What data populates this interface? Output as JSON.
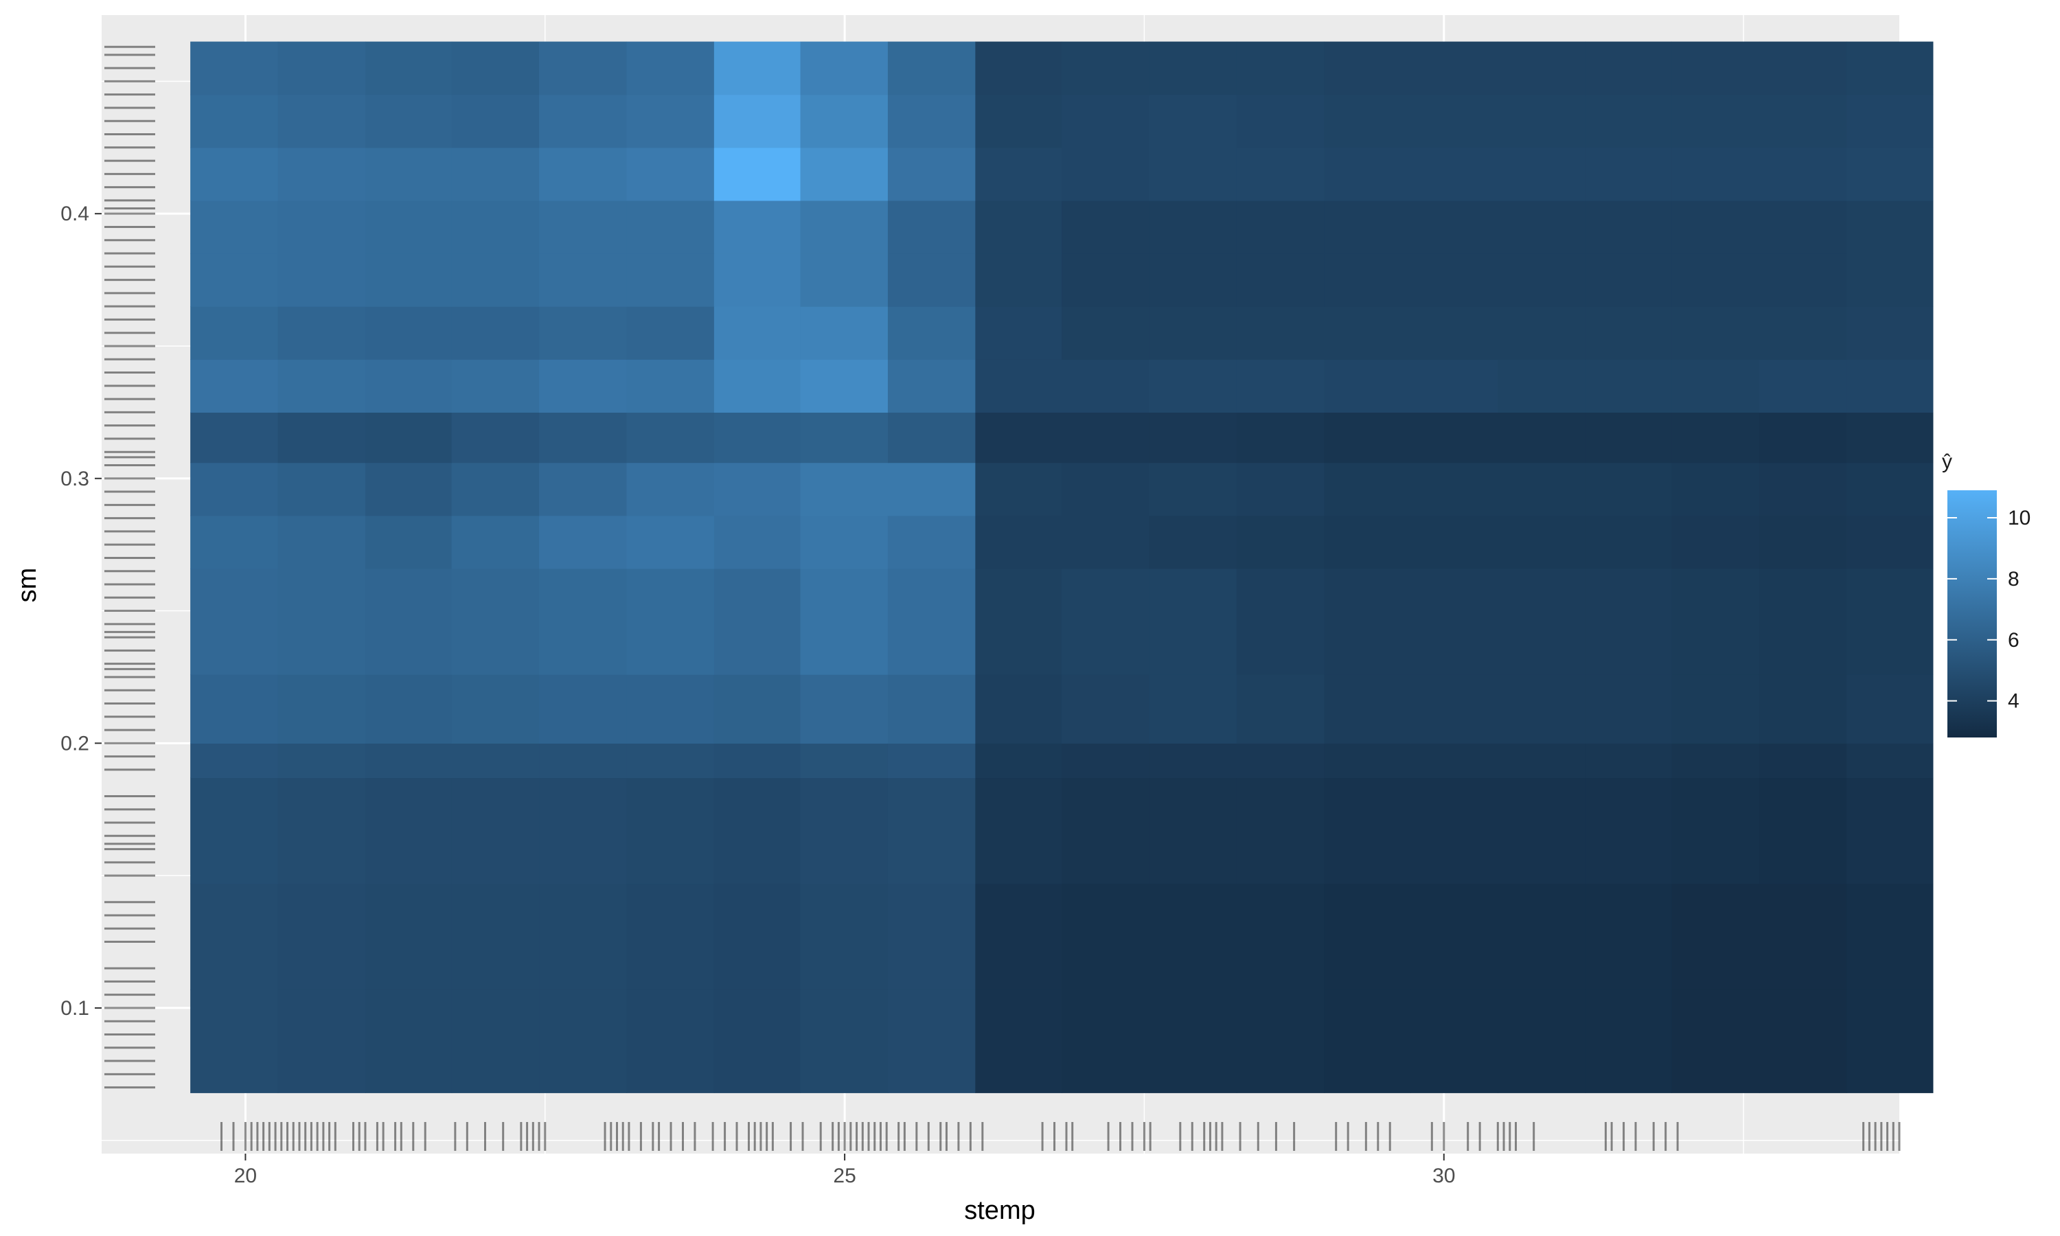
{
  "chart_data": {
    "type": "heatmap",
    "xlabel": "stemp",
    "ylabel": "sm",
    "xlim": [
      18.8,
      33.8
    ],
    "ylim": [
      0.045,
      0.475
    ],
    "x_ticks": [
      "20",
      "25",
      "30"
    ],
    "x_tick_values": [
      20,
      25,
      30
    ],
    "y_ticks": [
      "0.1",
      "0.2",
      "0.3",
      "0.4"
    ],
    "y_tick_values": [
      0.1,
      0.2,
      0.3,
      0.4
    ],
    "grid": true,
    "legend": {
      "title": "ŷ",
      "position": "right",
      "ticks": [
        "4",
        "6",
        "8",
        "10"
      ],
      "tick_values": [
        4,
        6,
        8,
        10
      ],
      "range": [
        2.8,
        10.9
      ],
      "low_color": "#132b43",
      "high_color": "#56b1f7"
    },
    "x_edges": [
      19.54,
      20.27,
      21.0,
      21.72,
      22.45,
      23.18,
      23.91,
      24.63,
      25.36,
      26.09,
      26.81,
      27.54,
      28.27,
      29.0,
      29.72,
      30.45,
      31.18,
      31.9,
      32.63,
      33.36,
      34.08
    ],
    "y_edges": [
      0.068,
      0.107,
      0.147,
      0.187,
      0.2,
      0.226,
      0.266,
      0.286,
      0.306,
      0.325,
      0.345,
      0.365,
      0.385,
      0.405,
      0.425,
      0.445,
      0.465
    ],
    "z": [
      [
        4.8,
        4.7,
        4.6,
        4.6,
        4.6,
        4.5,
        4.4,
        4.6,
        4.7,
        3.3,
        3.2,
        3.2,
        3.2,
        3.1,
        3.1,
        3.1,
        3.1,
        3.0,
        3.0,
        3.1
      ],
      [
        4.8,
        4.7,
        4.6,
        4.6,
        4.6,
        4.5,
        4.4,
        4.6,
        4.7,
        3.3,
        3.2,
        3.2,
        3.2,
        3.1,
        3.1,
        3.1,
        3.1,
        3.0,
        3.0,
        3.1
      ],
      [
        4.9,
        4.8,
        4.7,
        4.7,
        4.7,
        4.6,
        4.5,
        4.7,
        4.8,
        3.5,
        3.4,
        3.4,
        3.4,
        3.3,
        3.3,
        3.3,
        3.3,
        3.2,
        3.1,
        3.3
      ],
      [
        5.3,
        5.2,
        5.1,
        5.1,
        5.1,
        5.1,
        5.0,
        5.2,
        5.3,
        3.7,
        3.6,
        3.6,
        3.6,
        3.5,
        3.5,
        3.5,
        3.5,
        3.4,
        3.3,
        3.5
      ],
      [
        6.2,
        6.1,
        6.0,
        6.1,
        6.2,
        6.2,
        6.1,
        6.5,
        6.3,
        4.0,
        4.2,
        4.3,
        4.1,
        3.9,
        3.9,
        3.9,
        3.9,
        3.8,
        3.7,
        3.9
      ],
      [
        6.5,
        6.4,
        6.3,
        6.4,
        6.6,
        6.7,
        6.5,
        7.2,
        6.8,
        4.1,
        4.3,
        4.3,
        4.0,
        3.9,
        3.9,
        3.9,
        3.9,
        3.8,
        3.7,
        3.8
      ],
      [
        6.6,
        6.4,
        6.1,
        6.6,
        7.1,
        7.3,
        7.0,
        7.4,
        7.0,
        4.0,
        4.0,
        3.9,
        3.8,
        3.7,
        3.7,
        3.7,
        3.7,
        3.6,
        3.5,
        3.6
      ],
      [
        6.2,
        6.0,
        5.6,
        6.0,
        6.5,
        7.0,
        7.1,
        7.5,
        7.5,
        4.1,
        4.0,
        4.1,
        4.0,
        3.8,
        3.8,
        3.8,
        3.8,
        3.7,
        3.6,
        3.7
      ],
      [
        5.3,
        5.0,
        4.9,
        5.3,
        5.6,
        5.8,
        6.0,
        6.1,
        5.7,
        3.6,
        3.6,
        3.6,
        3.5,
        3.4,
        3.4,
        3.4,
        3.4,
        3.4,
        3.3,
        3.4
      ],
      [
        7.1,
        6.9,
        6.8,
        6.9,
        7.3,
        7.2,
        8.3,
        8.6,
        6.9,
        4.4,
        4.4,
        4.5,
        4.5,
        4.4,
        4.4,
        4.3,
        4.3,
        4.3,
        4.4,
        4.4
      ],
      [
        6.6,
        6.3,
        6.2,
        6.2,
        6.4,
        6.3,
        8.1,
        8.1,
        6.6,
        4.4,
        4.1,
        4.1,
        4.1,
        4.1,
        4.1,
        4.1,
        4.1,
        4.1,
        4.1,
        4.2
      ],
      [
        6.9,
        6.8,
        6.7,
        6.7,
        6.9,
        6.9,
        8.0,
        7.5,
        6.2,
        4.3,
        4.0,
        4.0,
        4.0,
        4.0,
        4.0,
        4.0,
        4.0,
        4.0,
        4.0,
        4.1
      ],
      [
        6.9,
        6.8,
        6.7,
        6.7,
        6.9,
        6.9,
        8.0,
        7.5,
        6.2,
        4.3,
        4.0,
        4.0,
        4.0,
        4.0,
        4.0,
        4.0,
        4.0,
        4.0,
        4.0,
        4.1
      ],
      [
        7.2,
        7.0,
        6.9,
        6.9,
        7.4,
        7.6,
        10.9,
        9.0,
        7.1,
        4.5,
        4.4,
        4.5,
        4.5,
        4.4,
        4.4,
        4.4,
        4.4,
        4.4,
        4.4,
        4.5
      ],
      [
        6.7,
        6.5,
        6.3,
        6.2,
        6.8,
        7.0,
        10.0,
        8.4,
        6.8,
        4.3,
        4.4,
        4.5,
        4.4,
        4.3,
        4.3,
        4.3,
        4.3,
        4.3,
        4.3,
        4.4
      ],
      [
        6.5,
        6.3,
        6.1,
        6.0,
        6.5,
        6.8,
        9.5,
        8.0,
        6.6,
        4.2,
        4.3,
        4.3,
        4.3,
        4.2,
        4.2,
        4.2,
        4.2,
        4.2,
        4.2,
        4.3
      ]
    ],
    "rug_x": [
      19.8,
      19.9,
      20.0,
      20.05,
      20.1,
      20.15,
      20.2,
      20.25,
      20.3,
      20.35,
      20.4,
      20.45,
      20.5,
      20.55,
      20.6,
      20.65,
      20.7,
      20.75,
      20.9,
      20.95,
      21.0,
      21.1,
      21.15,
      21.25,
      21.3,
      21.4,
      21.5,
      21.75,
      21.85,
      22.0,
      22.15,
      22.3,
      22.35,
      22.4,
      22.45,
      22.5,
      23.0,
      23.05,
      23.1,
      23.15,
      23.2,
      23.3,
      23.4,
      23.45,
      23.55,
      23.65,
      23.75,
      23.9,
      24.0,
      24.1,
      24.2,
      24.25,
      24.3,
      24.35,
      24.4,
      24.55,
      24.65,
      24.8,
      24.9,
      24.95,
      25.0,
      25.05,
      25.1,
      25.15,
      25.2,
      25.25,
      25.3,
      25.35,
      25.45,
      25.5,
      25.6,
      25.7,
      25.8,
      25.85,
      25.95,
      26.05,
      26.15,
      26.65,
      26.75,
      26.85,
      26.9,
      27.2,
      27.3,
      27.4,
      27.5,
      27.55,
      27.8,
      27.9,
      28.0,
      28.05,
      28.1,
      28.15,
      28.3,
      28.45,
      28.6,
      28.75,
      29.1,
      29.2,
      29.35,
      29.45,
      29.55,
      29.9,
      30.0,
      30.2,
      30.3,
      30.45,
      30.5,
      30.55,
      30.6,
      30.75,
      31.35,
      31.4,
      31.5,
      31.6,
      31.75,
      31.85,
      31.95,
      33.5,
      33.55,
      33.6,
      33.65,
      33.7,
      33.75,
      33.8
    ],
    "rug_y": [
      0.07,
      0.075,
      0.08,
      0.085,
      0.09,
      0.095,
      0.1,
      0.105,
      0.11,
      0.115,
      0.125,
      0.13,
      0.135,
      0.14,
      0.15,
      0.155,
      0.16,
      0.162,
      0.165,
      0.17,
      0.175,
      0.18,
      0.19,
      0.195,
      0.2,
      0.205,
      0.21,
      0.215,
      0.22,
      0.225,
      0.228,
      0.23,
      0.235,
      0.24,
      0.242,
      0.245,
      0.25,
      0.255,
      0.26,
      0.265,
      0.27,
      0.275,
      0.28,
      0.285,
      0.29,
      0.295,
      0.3,
      0.305,
      0.308,
      0.31,
      0.315,
      0.32,
      0.325,
      0.33,
      0.335,
      0.34,
      0.345,
      0.35,
      0.355,
      0.36,
      0.365,
      0.37,
      0.375,
      0.38,
      0.385,
      0.39,
      0.395,
      0.4,
      0.402,
      0.405,
      0.41,
      0.415,
      0.42,
      0.425,
      0.43,
      0.435,
      0.44,
      0.445,
      0.45,
      0.455,
      0.46,
      0.463
    ]
  }
}
